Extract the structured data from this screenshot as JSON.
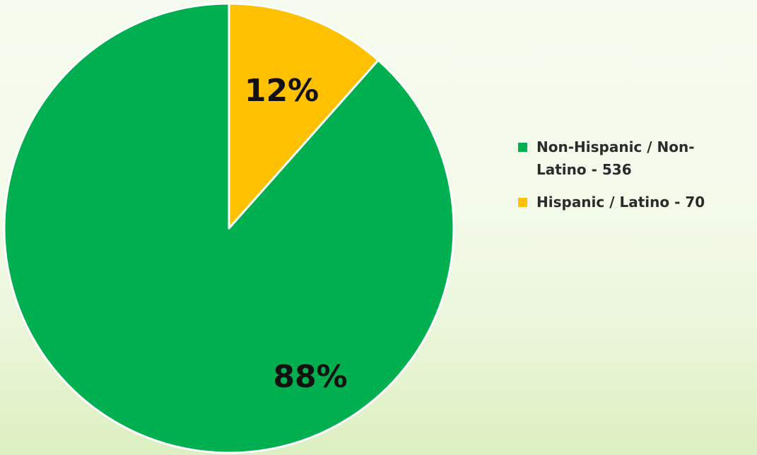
{
  "chart_data": {
    "type": "pie",
    "categories": [
      "Non-Hispanic / Non-Latino",
      "Hispanic / Latino"
    ],
    "values": [
      536,
      70
    ],
    "percent_labels": [
      "88%",
      "12%"
    ],
    "legend_labels": [
      "Non-Hispanic / Non-Latino - 536",
      "Hispanic / Latino - 70"
    ],
    "colors": [
      "#00b050",
      "#ffc000"
    ],
    "slice_border_color": "#ffffff",
    "start_angle": "12 o'clock",
    "direction": "counterclockwise",
    "legend_position": "right"
  }
}
